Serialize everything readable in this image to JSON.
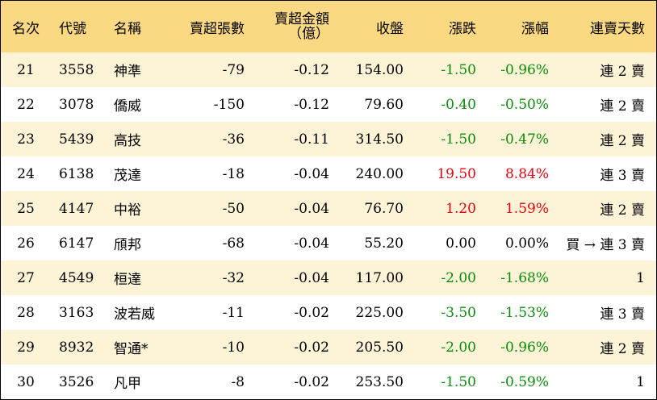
{
  "colors": {
    "header_bg": "#fbd983",
    "odd_row_bg": "#fdf3d6",
    "up": "#e8000f",
    "down": "#0b8a0b",
    "flat": "#000000"
  },
  "headers": {
    "rank": "名次",
    "code": "代號",
    "name": "名稱",
    "sell_lots": "賣超張數",
    "sell_amount_line1": "賣超金額",
    "sell_amount_line2": "（億）",
    "close": "收盤",
    "change": "漲跌",
    "change_pct": "漲幅",
    "consecutive_days": "連賣天數"
  },
  "rows": [
    {
      "rank": "21",
      "code": "3558",
      "name": "神準",
      "sell_lots": "-79",
      "sell_amount": "-0.12",
      "close": "154.00",
      "change": "-1.50",
      "change_pct": "-0.96%",
      "trend": "down",
      "days": "連 2 賣"
    },
    {
      "rank": "22",
      "code": "3078",
      "name": "僑威",
      "sell_lots": "-150",
      "sell_amount": "-0.12",
      "close": "79.60",
      "change": "-0.40",
      "change_pct": "-0.50%",
      "trend": "down",
      "days": "連 2 賣"
    },
    {
      "rank": "23",
      "code": "5439",
      "name": "高技",
      "sell_lots": "-36",
      "sell_amount": "-0.11",
      "close": "314.50",
      "change": "-1.50",
      "change_pct": "-0.47%",
      "trend": "down",
      "days": "連 2 賣"
    },
    {
      "rank": "24",
      "code": "6138",
      "name": "茂達",
      "sell_lots": "-18",
      "sell_amount": "-0.04",
      "close": "240.00",
      "change": "19.50",
      "change_pct": "8.84%",
      "trend": "up",
      "days": "連 3 賣"
    },
    {
      "rank": "25",
      "code": "4147",
      "name": "中裕",
      "sell_lots": "-50",
      "sell_amount": "-0.04",
      "close": "76.70",
      "change": "1.20",
      "change_pct": "1.59%",
      "trend": "up",
      "days": "連 2 賣"
    },
    {
      "rank": "26",
      "code": "6147",
      "name": "頎邦",
      "sell_lots": "-68",
      "sell_amount": "-0.04",
      "close": "55.20",
      "change": "0.00",
      "change_pct": "0.00%",
      "trend": "flat",
      "days": "買 → 連 3 賣"
    },
    {
      "rank": "27",
      "code": "4549",
      "name": "桓達",
      "sell_lots": "-32",
      "sell_amount": "-0.04",
      "close": "117.00",
      "change": "-2.00",
      "change_pct": "-1.68%",
      "trend": "down",
      "days": "1"
    },
    {
      "rank": "28",
      "code": "3163",
      "name": "波若威",
      "sell_lots": "-11",
      "sell_amount": "-0.02",
      "close": "225.00",
      "change": "-3.50",
      "change_pct": "-1.53%",
      "trend": "down",
      "days": "連 3 賣"
    },
    {
      "rank": "29",
      "code": "8932",
      "name": "智通*",
      "sell_lots": "-10",
      "sell_amount": "-0.02",
      "close": "205.50",
      "change": "-2.00",
      "change_pct": "-0.96%",
      "trend": "down",
      "days": "連 2 賣"
    },
    {
      "rank": "30",
      "code": "3526",
      "name": "凡甲",
      "sell_lots": "-8",
      "sell_amount": "-0.02",
      "close": "253.50",
      "change": "-1.50",
      "change_pct": "-0.59%",
      "trend": "down",
      "days": "1"
    }
  ]
}
